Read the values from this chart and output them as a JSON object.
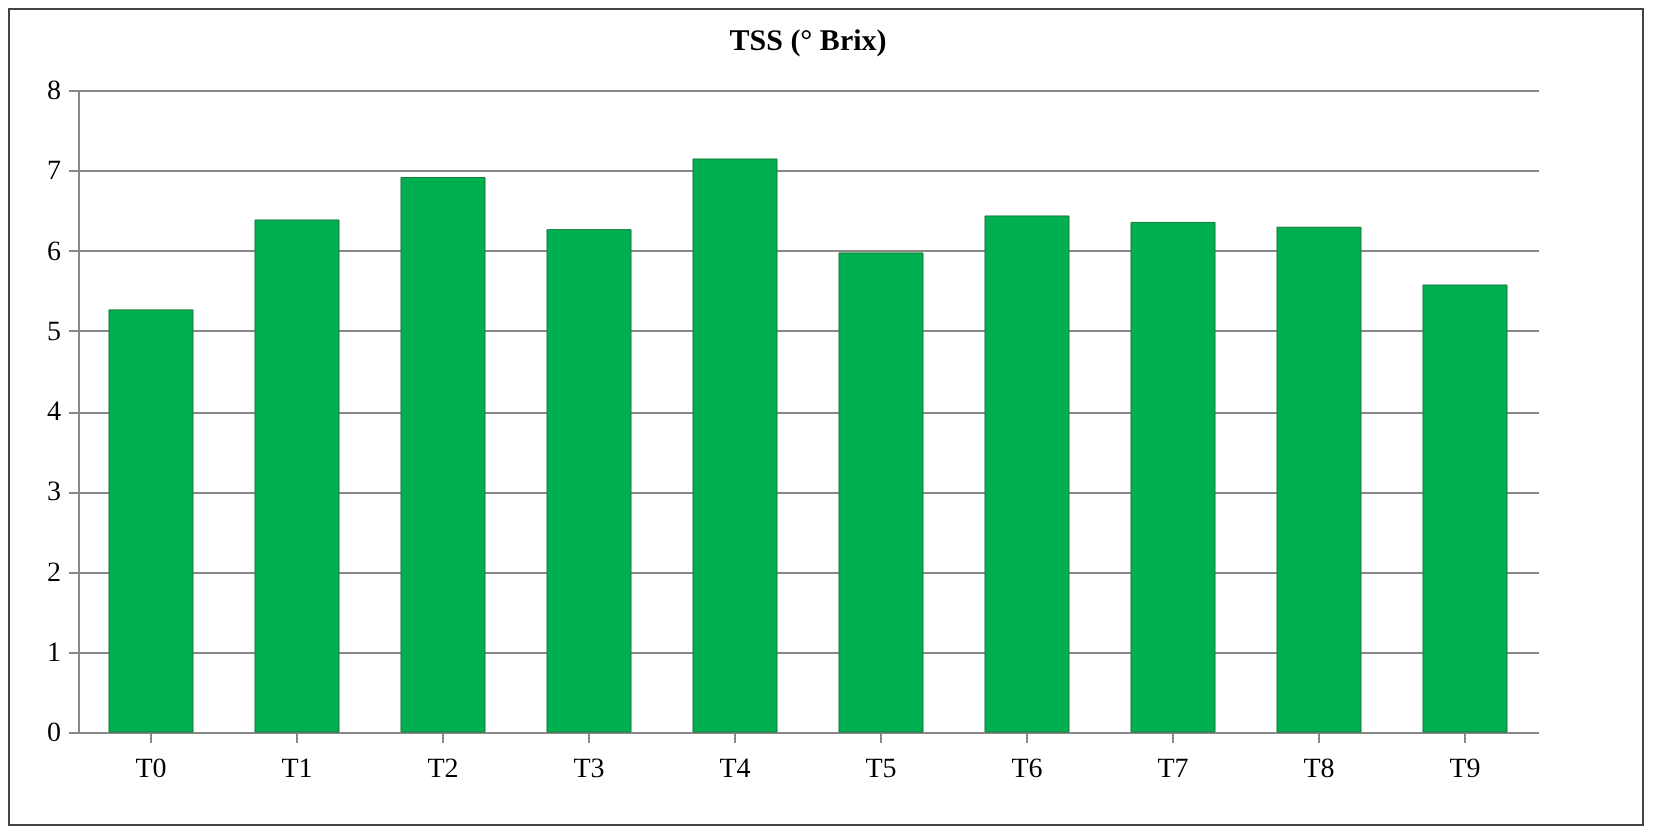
{
  "chart_data": {
    "type": "bar",
    "title": "TSS (° Brix)",
    "categories": [
      "T0",
      "T1",
      "T2",
      "T3",
      "T4",
      "T5",
      "T6",
      "T7",
      "T8",
      "T9"
    ],
    "values": [
      5.26,
      6.38,
      6.91,
      6.26,
      7.14,
      5.97,
      6.43,
      6.35,
      6.29,
      5.57
    ],
    "color": "#00b050",
    "ylim": [
      0,
      8
    ],
    "yticks": [
      0,
      1,
      2,
      3,
      4,
      5,
      6,
      7,
      8
    ],
    "grid": "y"
  }
}
